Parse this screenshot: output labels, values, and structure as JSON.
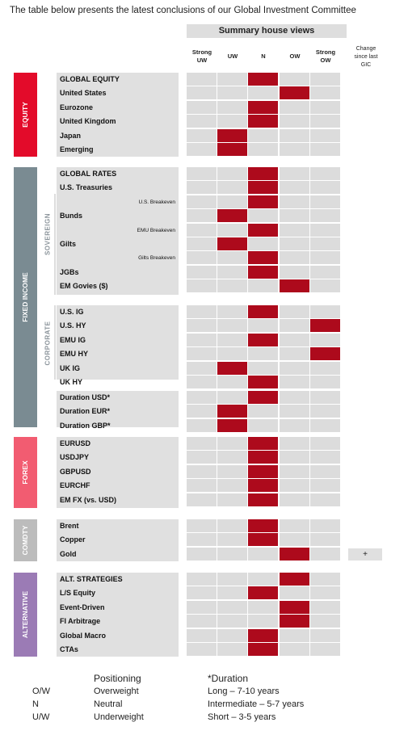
{
  "intro": "The table below presents the latest conclusions of our Global Investment Committee",
  "summary_header": "Summary house views",
  "columns": [
    "Strong UW",
    "UW",
    "N",
    "OW",
    "Strong OW"
  ],
  "change_header": "Change since last GIC",
  "colors": {
    "active": "#ad0a1c",
    "cell": "#dcdcdc",
    "equity": "#e30b2a",
    "fixed_income": "#7a8b92",
    "forex": "#f25c71",
    "comdty": "#bcbcbc",
    "alternative": "#9b7bb5"
  },
  "bands": {
    "equity": "EQUITY",
    "fixed_income": "FIXED INCOME",
    "sovereign": "SOVEREIGN",
    "corporate": "CORPORATE",
    "forex": "FOREX",
    "comdty": "COMDTY",
    "alternative": "ALTERNATIVE"
  },
  "rows": [
    {
      "label": "GLOBAL EQUITY",
      "view": "N"
    },
    {
      "label": "United States",
      "view": "OW"
    },
    {
      "label": "Eurozone",
      "view": "N"
    },
    {
      "label": "United Kingdom",
      "view": "N"
    },
    {
      "label": "Japan",
      "view": "UW"
    },
    {
      "label": "Emerging",
      "view": "UW"
    },
    {
      "label": "GLOBAL RATES",
      "view": "N"
    },
    {
      "label": "U.S. Treasuries",
      "view": "N"
    },
    {
      "label": "U.S. Breakeven",
      "view": "N"
    },
    {
      "label": "Bunds",
      "view": "UW"
    },
    {
      "label": "EMU Breakeven",
      "view": "N"
    },
    {
      "label": "Gilts",
      "view": "UW"
    },
    {
      "label": "Gilts Breakeven",
      "view": "N"
    },
    {
      "label": "JGBs",
      "view": "N"
    },
    {
      "label": "EM Govies ($)",
      "view": "OW"
    },
    {
      "label": "U.S. IG",
      "view": "N"
    },
    {
      "label": "U.S. HY",
      "view": "Strong OW"
    },
    {
      "label": "EMU IG",
      "view": "N"
    },
    {
      "label": "EMU HY",
      "view": "Strong OW"
    },
    {
      "label": "UK IG",
      "view": "UW"
    },
    {
      "label": "UK HY",
      "view": "N"
    },
    {
      "label": "Duration USD*",
      "view": "N"
    },
    {
      "label": "Duration EUR*",
      "view": "UW"
    },
    {
      "label": "Duration GBP*",
      "view": "UW"
    },
    {
      "label": "EURUSD",
      "view": "N"
    },
    {
      "label": "USDJPY",
      "view": "N"
    },
    {
      "label": "GBPUSD",
      "view": "N"
    },
    {
      "label": "EURCHF",
      "view": "N"
    },
    {
      "label": "EM FX (vs. USD)",
      "view": "N"
    },
    {
      "label": "Brent",
      "view": "N"
    },
    {
      "label": "Copper",
      "view": "N"
    },
    {
      "label": "Gold",
      "view": "OW",
      "change": "+"
    },
    {
      "label": "ALT. STRATEGIES",
      "view": "OW"
    },
    {
      "label": "L/S Equity",
      "view": "N"
    },
    {
      "label": "Event-Driven",
      "view": "OW"
    },
    {
      "label": "FI Arbitrage",
      "view": "OW"
    },
    {
      "label": "Global Macro",
      "view": "N"
    },
    {
      "label": "CTAs",
      "view": "N"
    }
  ],
  "legend": {
    "positioning_title": "Positioning",
    "positioning": [
      {
        "abbr": "O/W",
        "meaning": "Overweight"
      },
      {
        "abbr": "N",
        "meaning": "Neutral"
      },
      {
        "abbr": "U/W",
        "meaning": "Underweight"
      }
    ],
    "duration_title": "*Duration",
    "duration": [
      "Long – 7-10 years",
      "Intermediate – 5-7 years",
      "Short – 3-5 years"
    ]
  }
}
